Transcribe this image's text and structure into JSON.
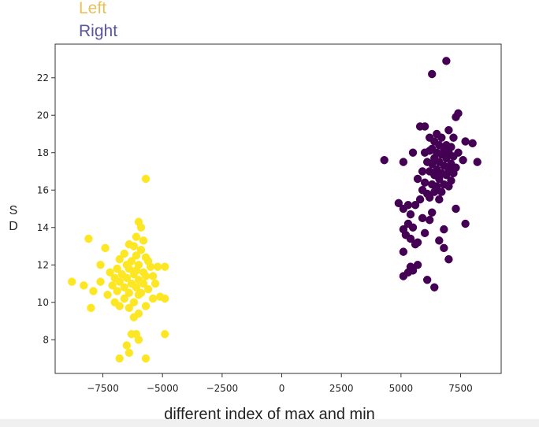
{
  "chart_data": {
    "type": "scatter",
    "title": "",
    "xlabel": "different index of max and min",
    "ylabel": "S\nD",
    "xlim": [
      -9500,
      9200
    ],
    "ylim": [
      6.2,
      23.8
    ],
    "xticks": [
      -7500,
      -5000,
      -2500,
      0,
      2500,
      5000,
      7500
    ],
    "xtick_labels": [
      "−7500",
      "−5000",
      "−2500",
      "0",
      "2500",
      "5000",
      "7500"
    ],
    "yticks": [
      8,
      10,
      12,
      14,
      16,
      18,
      20,
      22
    ],
    "ytick_labels": [
      "8",
      "10",
      "12",
      "14",
      "16",
      "18",
      "20",
      "22"
    ],
    "grid": false,
    "legend_placement": "top-left",
    "series": [
      {
        "name": "Left",
        "color": "#fde725",
        "label_color": "#e8c15a",
        "points": [
          [
            -5700,
            16.6
          ],
          [
            -6000,
            14.3
          ],
          [
            -5900,
            14.0
          ],
          [
            -8100,
            13.4
          ],
          [
            -7400,
            12.9
          ],
          [
            -6100,
            13.5
          ],
          [
            -5800,
            13.3
          ],
          [
            -6400,
            13.1
          ],
          [
            -6200,
            13.0
          ],
          [
            -5900,
            12.8
          ],
          [
            -6600,
            12.6
          ],
          [
            -6100,
            12.5
          ],
          [
            -5700,
            12.4
          ],
          [
            -6800,
            12.3
          ],
          [
            -6300,
            12.2
          ],
          [
            -5600,
            12.2
          ],
          [
            -7600,
            12.0
          ],
          [
            -6500,
            12.0
          ],
          [
            -6000,
            12.0
          ],
          [
            -5500,
            11.9
          ],
          [
            -5200,
            11.9
          ],
          [
            -4900,
            11.9
          ],
          [
            -6900,
            11.8
          ],
          [
            -6400,
            11.8
          ],
          [
            -6100,
            11.7
          ],
          [
            -5800,
            11.6
          ],
          [
            -7200,
            11.6
          ],
          [
            -6700,
            11.5
          ],
          [
            -6200,
            11.5
          ],
          [
            -5700,
            11.4
          ],
          [
            -5400,
            11.4
          ],
          [
            -7000,
            11.3
          ],
          [
            -6500,
            11.3
          ],
          [
            -6000,
            11.2
          ],
          [
            -8800,
            11.1
          ],
          [
            -7600,
            11.1
          ],
          [
            -6800,
            11.1
          ],
          [
            -6300,
            11.0
          ],
          [
            -5800,
            11.0
          ],
          [
            -5300,
            11.0
          ],
          [
            -8300,
            10.9
          ],
          [
            -7100,
            10.9
          ],
          [
            -6600,
            10.8
          ],
          [
            -6100,
            10.8
          ],
          [
            -5600,
            10.7
          ],
          [
            -7900,
            10.6
          ],
          [
            -6900,
            10.6
          ],
          [
            -6400,
            10.5
          ],
          [
            -5900,
            10.5
          ],
          [
            -7300,
            10.4
          ],
          [
            -6000,
            10.4
          ],
          [
            -5100,
            10.3
          ],
          [
            -6600,
            10.2
          ],
          [
            -5400,
            10.2
          ],
          [
            -4900,
            10.2
          ],
          [
            -7000,
            10.0
          ],
          [
            -6200,
            10.0
          ],
          [
            -6800,
            9.8
          ],
          [
            -5700,
            9.8
          ],
          [
            -8000,
            9.7
          ],
          [
            -6400,
            9.7
          ],
          [
            -6000,
            9.4
          ],
          [
            -6200,
            9.2
          ],
          [
            -4900,
            8.3
          ],
          [
            -6300,
            8.3
          ],
          [
            -6100,
            8.3
          ],
          [
            -6000,
            8.0
          ],
          [
            -6500,
            7.7
          ],
          [
            -6400,
            7.3
          ],
          [
            -5700,
            7.0
          ],
          [
            -6800,
            7.0
          ]
        ]
      },
      {
        "name": "Right",
        "color": "#440154",
        "label_color": "#5a5499",
        "points": [
          [
            6900,
            22.9
          ],
          [
            6300,
            22.2
          ],
          [
            7400,
            20.1
          ],
          [
            7300,
            19.9
          ],
          [
            5800,
            19.4
          ],
          [
            6000,
            19.4
          ],
          [
            7000,
            19.2
          ],
          [
            6500,
            19.0
          ],
          [
            6200,
            18.8
          ],
          [
            6700,
            18.8
          ],
          [
            7200,
            18.8
          ],
          [
            6400,
            18.6
          ],
          [
            7700,
            18.6
          ],
          [
            8000,
            18.5
          ],
          [
            6600,
            18.4
          ],
          [
            6900,
            18.4
          ],
          [
            7100,
            18.3
          ],
          [
            6300,
            18.2
          ],
          [
            6800,
            18.2
          ],
          [
            6200,
            18.1
          ],
          [
            5500,
            18.0
          ],
          [
            6000,
            18.0
          ],
          [
            6500,
            18.0
          ],
          [
            7000,
            18.0
          ],
          [
            7400,
            18.0
          ],
          [
            6700,
            17.9
          ],
          [
            7200,
            17.8
          ],
          [
            6400,
            17.7
          ],
          [
            6900,
            17.7
          ],
          [
            4300,
            17.6
          ],
          [
            7600,
            17.6
          ],
          [
            5100,
            17.5
          ],
          [
            6100,
            17.5
          ],
          [
            6600,
            17.5
          ],
          [
            8200,
            17.5
          ],
          [
            6300,
            17.4
          ],
          [
            7100,
            17.4
          ],
          [
            6800,
            17.3
          ],
          [
            7300,
            17.2
          ],
          [
            6500,
            17.1
          ],
          [
            7000,
            17.1
          ],
          [
            5900,
            17.0
          ],
          [
            6200,
            17.0
          ],
          [
            6700,
            16.9
          ],
          [
            7200,
            16.9
          ],
          [
            6400,
            16.8
          ],
          [
            6900,
            16.8
          ],
          [
            5700,
            16.6
          ],
          [
            6600,
            16.6
          ],
          [
            7100,
            16.5
          ],
          [
            6000,
            16.4
          ],
          [
            6300,
            16.3
          ],
          [
            6800,
            16.3
          ],
          [
            6500,
            16.2
          ],
          [
            7000,
            16.2
          ],
          [
            5900,
            16.0
          ],
          [
            6400,
            15.9
          ],
          [
            6700,
            15.9
          ],
          [
            6100,
            15.8
          ],
          [
            6200,
            15.6
          ],
          [
            5800,
            15.5
          ],
          [
            6600,
            15.5
          ],
          [
            4900,
            15.3
          ],
          [
            5300,
            15.2
          ],
          [
            5600,
            15.2
          ],
          [
            5100,
            15.0
          ],
          [
            7300,
            15.0
          ],
          [
            6300,
            14.8
          ],
          [
            5400,
            14.7
          ],
          [
            5900,
            14.5
          ],
          [
            6200,
            14.4
          ],
          [
            7700,
            14.2
          ],
          [
            5300,
            14.2
          ],
          [
            5500,
            14.0
          ],
          [
            5100,
            13.9
          ],
          [
            6800,
            13.9
          ],
          [
            6000,
            13.7
          ],
          [
            5200,
            13.6
          ],
          [
            5400,
            13.4
          ],
          [
            6600,
            13.3
          ],
          [
            5700,
            13.2
          ],
          [
            5600,
            13.1
          ],
          [
            6800,
            12.9
          ],
          [
            5100,
            12.7
          ],
          [
            7000,
            12.3
          ],
          [
            5700,
            12.0
          ],
          [
            5400,
            11.9
          ],
          [
            5500,
            11.7
          ],
          [
            5300,
            11.6
          ],
          [
            5100,
            11.4
          ],
          [
            6100,
            11.2
          ],
          [
            6400,
            10.8
          ]
        ]
      }
    ]
  }
}
